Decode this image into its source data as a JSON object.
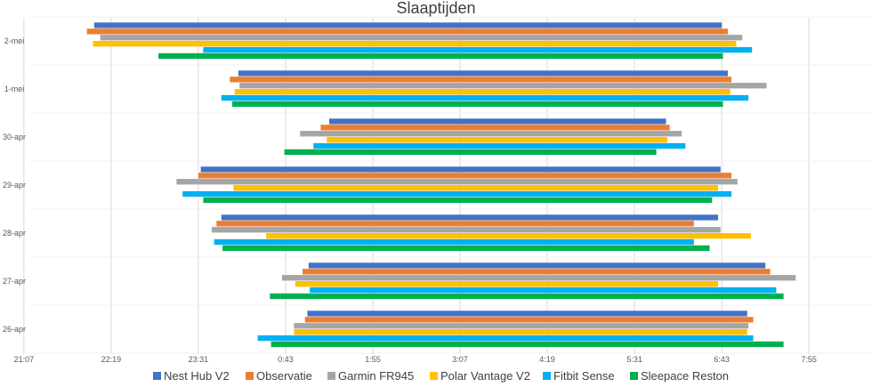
{
  "chart_data": {
    "type": "bar",
    "orientation": "horizontal-floating",
    "title": "Slaaptijden",
    "xlabel": "",
    "ylabel": "",
    "grid": true,
    "legend_position": "bottom",
    "x_range_minutes": [
      -167,
      527
    ],
    "x_ticks": [
      "21:07",
      "22:19",
      "23:31",
      "0:43",
      "1:55",
      "3:07",
      "4:19",
      "5:31",
      "6:43",
      "7:55"
    ],
    "x_tick_minutes": [
      -173,
      -101,
      -29,
      43,
      115,
      187,
      259,
      331,
      403,
      475
    ],
    "categories": [
      "2-mei",
      "1-mei",
      "30-apr",
      "29-apr",
      "28-apr",
      "27-apr",
      "26-apr"
    ],
    "series": [
      {
        "name": "Nest Hub V2",
        "color": "#4472C4",
        "bars": [
          [
            "22:05",
            "6:43"
          ],
          [
            "0:04",
            "6:48"
          ],
          [
            "1:19",
            "5:57"
          ],
          [
            "23:33",
            "6:42"
          ],
          [
            "23:50",
            "6:40"
          ],
          [
            "1:02",
            "7:19"
          ],
          [
            "1:01",
            "7:04"
          ]
        ]
      },
      {
        "name": "Observatie",
        "color": "#ED7D31",
        "bars": [
          [
            "21:59",
            "6:48"
          ],
          [
            "23:57",
            "6:51"
          ],
          [
            "1:12",
            "6:00"
          ],
          [
            "23:31",
            "6:51"
          ],
          [
            "23:46",
            "6:20"
          ],
          [
            "0:57",
            "7:23"
          ],
          [
            "0:59",
            "7:09"
          ]
        ]
      },
      {
        "name": "Garmin FR945",
        "color": "#A5A5A5",
        "bars": [
          [
            "22:10",
            "7:00"
          ],
          [
            "0:05",
            "7:20"
          ],
          [
            "0:55",
            "6:10"
          ],
          [
            "23:13",
            "6:56"
          ],
          [
            "23:42",
            "6:42"
          ],
          [
            "0:40",
            "7:44"
          ],
          [
            "0:50",
            "7:05"
          ]
        ]
      },
      {
        "name": "Polar Vantage V2",
        "color": "#FFC000",
        "bars": [
          [
            "22:04",
            "6:55"
          ],
          [
            "0:01",
            "6:50"
          ],
          [
            "1:17",
            "5:58"
          ],
          [
            "0:00",
            "6:40"
          ],
          [
            "0:27",
            "7:07"
          ],
          [
            "0:51",
            "6:40"
          ],
          [
            "0:50",
            "7:04"
          ]
        ]
      },
      {
        "name": "Fitbit Sense",
        "color": "#00B0F0",
        "bars": [
          [
            "23:35",
            "7:08"
          ],
          [
            "23:50",
            "7:05"
          ],
          [
            "1:06",
            "6:13"
          ],
          [
            "23:18",
            "6:51"
          ],
          [
            "23:44",
            "6:20"
          ],
          [
            "1:03",
            "7:28"
          ],
          [
            "0:20",
            "7:09"
          ]
        ]
      },
      {
        "name": "Sleepace Reston",
        "color": "#00B050",
        "bars": [
          [
            "22:58",
            "6:44"
          ],
          [
            "23:59",
            "6:44"
          ],
          [
            "0:42",
            "5:49"
          ],
          [
            "23:35",
            "6:35"
          ],
          [
            "23:51",
            "6:33"
          ],
          [
            "0:30",
            "7:34"
          ],
          [
            "0:31",
            "7:34"
          ]
        ]
      }
    ]
  }
}
